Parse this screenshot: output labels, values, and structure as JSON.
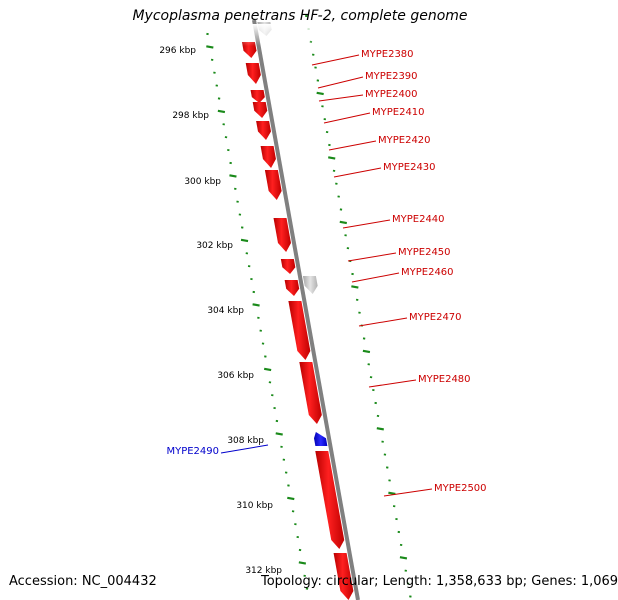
{
  "title": "Mycoplasma penetrans HF-2, complete genome",
  "footer": {
    "accession": "Accession: NC_004432",
    "summary": "Topology: circular; Length: 1,358,633 bp; Genes: 1,069"
  },
  "colors": {
    "forward_gene": "#ff0000",
    "reverse_gene": "#0000ff",
    "other_feature": "#c0c0c0",
    "backbone": "#808080",
    "ruler": "#1a8a1a"
  },
  "scale_labels": [
    "296 kbp",
    "298 kbp",
    "300 kbp",
    "302 kbp",
    "304 kbp",
    "306 kbp",
    "308 kbp",
    "310 kbp",
    "312 kbp"
  ],
  "genes": [
    {
      "label": "MYPE2380",
      "strand": "forward"
    },
    {
      "label": "MYPE2390",
      "strand": "forward"
    },
    {
      "label": "MYPE2400",
      "strand": "forward"
    },
    {
      "label": "MYPE2410",
      "strand": "forward"
    },
    {
      "label": "MYPE2420",
      "strand": "forward"
    },
    {
      "label": "MYPE2430",
      "strand": "forward"
    },
    {
      "label": "MYPE2440",
      "strand": "forward"
    },
    {
      "label": "MYPE2450",
      "strand": "forward"
    },
    {
      "label": "MYPE2460",
      "strand": "forward"
    },
    {
      "label": "MYPE2470",
      "strand": "forward"
    },
    {
      "label": "MYPE2480",
      "strand": "forward"
    },
    {
      "label": "MYPE2490",
      "strand": "reverse"
    },
    {
      "label": "MYPE2500",
      "strand": "forward"
    }
  ]
}
